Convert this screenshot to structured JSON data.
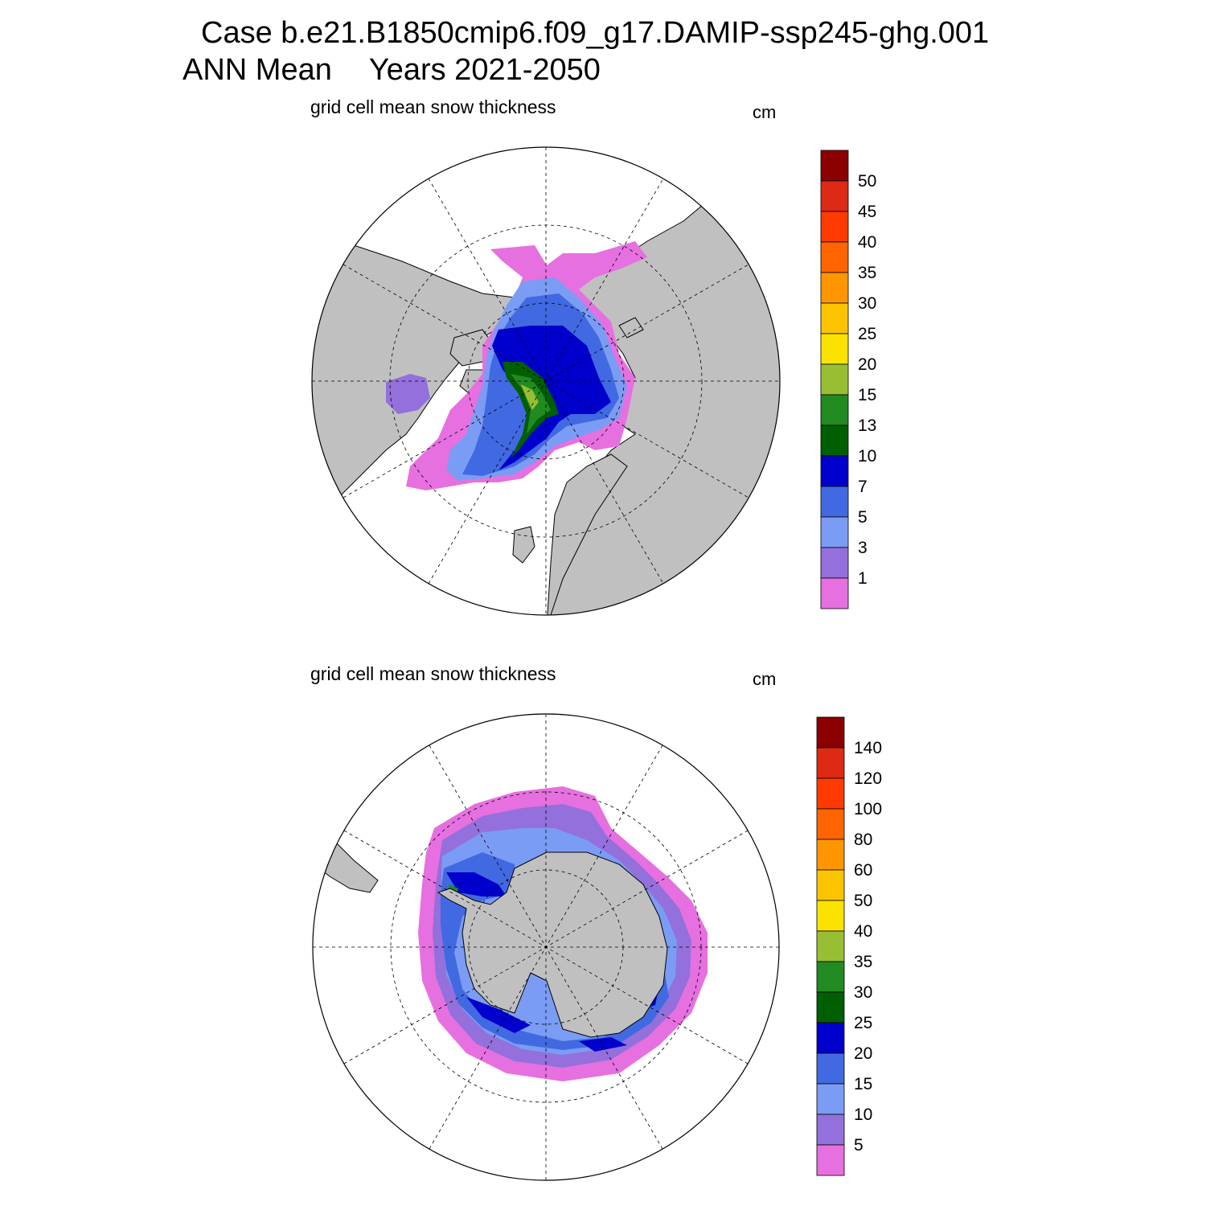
{
  "header": {
    "case_label": "Case b.e21.B1850cmip6.f09_g17.DAMIP-ssp245-ghg.001",
    "season": "ANN Mean",
    "years": "Years 2021-2050"
  },
  "panels": [
    {
      "id": "north",
      "title": "grid cell mean snow thickness",
      "units": "cm",
      "hemisphere": "Arctic (polar stereographic)",
      "colorbar": {
        "labels": [
          "50",
          "45",
          "40",
          "35",
          "30",
          "25",
          "20",
          "15",
          "13",
          "10",
          "7",
          "5",
          "3",
          "1"
        ],
        "colors": [
          "#8b0000",
          "#dc2a14",
          "#ff3a00",
          "#ff6400",
          "#ff9600",
          "#fcc400",
          "#fce200",
          "#98bf34",
          "#218a21",
          "#005f00",
          "#0000cd",
          "#4169e1",
          "#7b9cf4",
          "#9370db",
          "#e670e0"
        ]
      }
    },
    {
      "id": "south",
      "title": "grid cell mean snow thickness",
      "units": "cm",
      "hemisphere": "Antarctic (polar stereographic)",
      "colorbar": {
        "labels": [
          "140",
          "120",
          "100",
          "80",
          "60",
          "50",
          "40",
          "35",
          "30",
          "25",
          "20",
          "15",
          "10",
          "5"
        ],
        "colors": [
          "#8b0000",
          "#dc2a14",
          "#ff3a00",
          "#ff6400",
          "#ff9600",
          "#fcc400",
          "#fce200",
          "#98bf34",
          "#218a21",
          "#005f00",
          "#0000cd",
          "#4169e1",
          "#7b9cf4",
          "#9370db",
          "#e670e0"
        ]
      }
    }
  ],
  "map_colors": {
    "land": "#c0c0c0",
    "background": "#ffffff",
    "outline": "#000000"
  }
}
